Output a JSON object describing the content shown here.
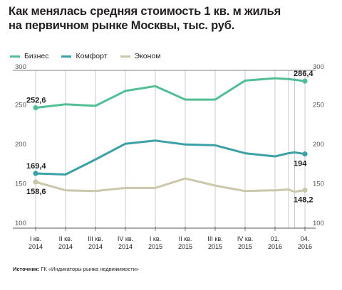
{
  "title_lines": [
    "Как менялась средняя стоимость 1 кв. м жилья",
    "на первичном рынке Москвы, тыс. руб."
  ],
  "source": {
    "label": "Источник:",
    "text": " ГК «Индикаторы рынка недвижимости»"
  },
  "colors": {
    "business": "#52be95",
    "comfort": "#3ca1a6",
    "econom": "#cbc7ab",
    "axis": "#555555",
    "grid": "#a8a8a8"
  },
  "chart_data": {
    "type": "line",
    "title": "Как менялась средняя стоимость 1 кв. м жилья на первичном рынке Москвы, тыс. руб.",
    "x_tick_labels": [
      [
        "I кв.",
        "2014"
      ],
      [
        "II кв.",
        "2014"
      ],
      [
        "III кв.",
        "2014"
      ],
      [
        "IV кв.",
        "2014"
      ],
      [
        "I кв.",
        "2015"
      ],
      [
        "II кв.",
        "2015"
      ],
      [
        "III кв.",
        "2015"
      ],
      [
        "IV кв.",
        "2015"
      ],
      [
        "01.",
        "2016"
      ],
      [
        "04.",
        "2016"
      ]
    ],
    "ylim": [
      100,
      300
    ],
    "yticks": [
      100,
      150,
      200,
      250,
      300
    ],
    "grid": "vertical",
    "legend_placement": "top-left",
    "series": [
      {
        "name": "Бизнес",
        "key": "business",
        "points": [
          [
            0,
            252.6
          ],
          [
            1,
            257
          ],
          [
            2,
            255
          ],
          [
            3,
            274
          ],
          [
            4,
            280
          ],
          [
            5,
            263
          ],
          [
            6,
            263
          ],
          [
            7,
            287
          ],
          [
            8,
            290
          ],
          [
            8.45,
            289
          ],
          [
            9,
            286.4
          ]
        ],
        "labels": [
          {
            "text": "252,6",
            "at": "first",
            "pos": "above"
          },
          {
            "text": "286,4",
            "at": "last",
            "pos": "above"
          }
        ]
      },
      {
        "name": "Комфорт",
        "key": "comfort",
        "points": [
          [
            0,
            169.4
          ],
          [
            1,
            168
          ],
          [
            2,
            187
          ],
          [
            3,
            207
          ],
          [
            4,
            211
          ],
          [
            5,
            206
          ],
          [
            6,
            205
          ],
          [
            7,
            195
          ],
          [
            8,
            191
          ],
          [
            8.45,
            195
          ],
          [
            8.65,
            196
          ],
          [
            9,
            194
          ]
        ],
        "labels": [
          {
            "text": "169,4",
            "at": "first",
            "pos": "above"
          },
          {
            "text": "194",
            "at": "last",
            "pos": "below"
          }
        ]
      },
      {
        "name": "Эконом",
        "key": "econom",
        "points": [
          [
            0,
            158.6
          ],
          [
            1,
            148
          ],
          [
            2,
            147
          ],
          [
            3,
            151
          ],
          [
            4,
            151
          ],
          [
            5,
            163
          ],
          [
            6,
            154
          ],
          [
            7,
            147
          ],
          [
            8,
            148
          ],
          [
            8.45,
            149
          ],
          [
            8.65,
            146
          ],
          [
            9,
            148.2
          ]
        ],
        "labels": [
          {
            "text": "158,6",
            "at": "first",
            "pos": "below"
          },
          {
            "text": "148,2",
            "at": "last",
            "pos": "below"
          }
        ]
      }
    ]
  }
}
